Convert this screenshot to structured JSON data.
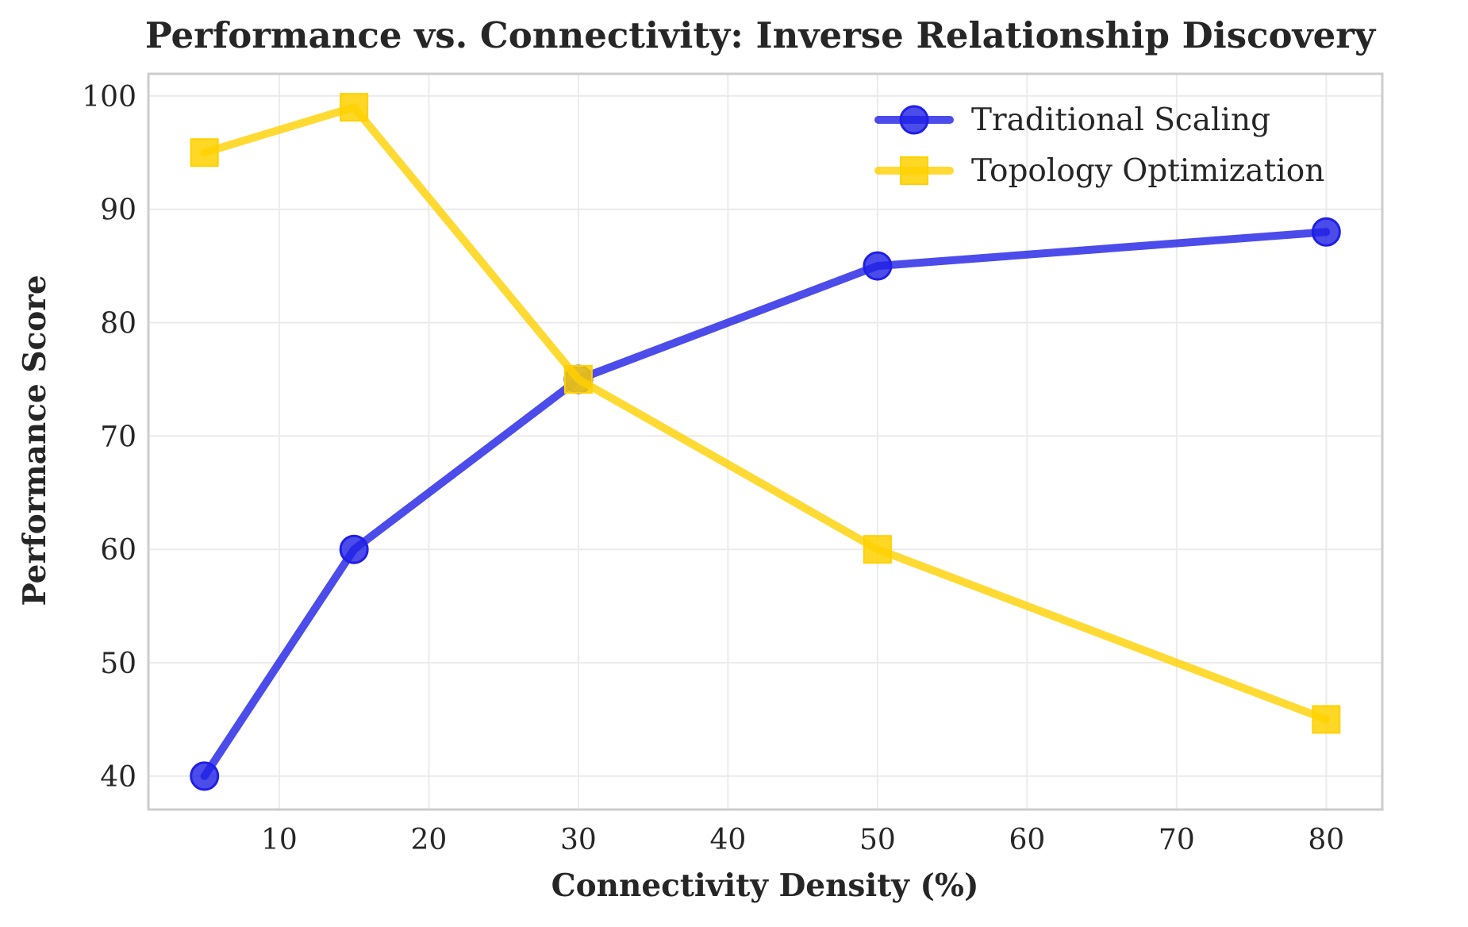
{
  "chart_data": {
    "type": "line",
    "title": "Performance vs. Connectivity: Inverse Relationship Discovery",
    "xlabel": "Connectivity Density (%)",
    "ylabel": "Performance Score",
    "x": [
      5,
      15,
      30,
      50,
      80
    ],
    "xlim": [
      1.25,
      83.75
    ],
    "ylim": [
      37.05,
      101.95
    ],
    "xticks": [
      10,
      20,
      30,
      40,
      50,
      60,
      70,
      80
    ],
    "yticks": [
      40,
      50,
      60,
      70,
      80,
      90,
      100
    ],
    "grid": true,
    "legend_position": "top-right",
    "series": [
      {
        "name": "Traditional Scaling",
        "values": [
          40,
          60,
          75,
          85,
          88
        ],
        "color": "#1f1fe6",
        "marker": "circle"
      },
      {
        "name": "Topology Optimization",
        "values": [
          95,
          99,
          75,
          60,
          45
        ],
        "color": "#ffd100",
        "marker": "square"
      }
    ]
  },
  "colors": {
    "grid": "#ebebeb",
    "frame": "#cccccc",
    "text": "#262626"
  }
}
